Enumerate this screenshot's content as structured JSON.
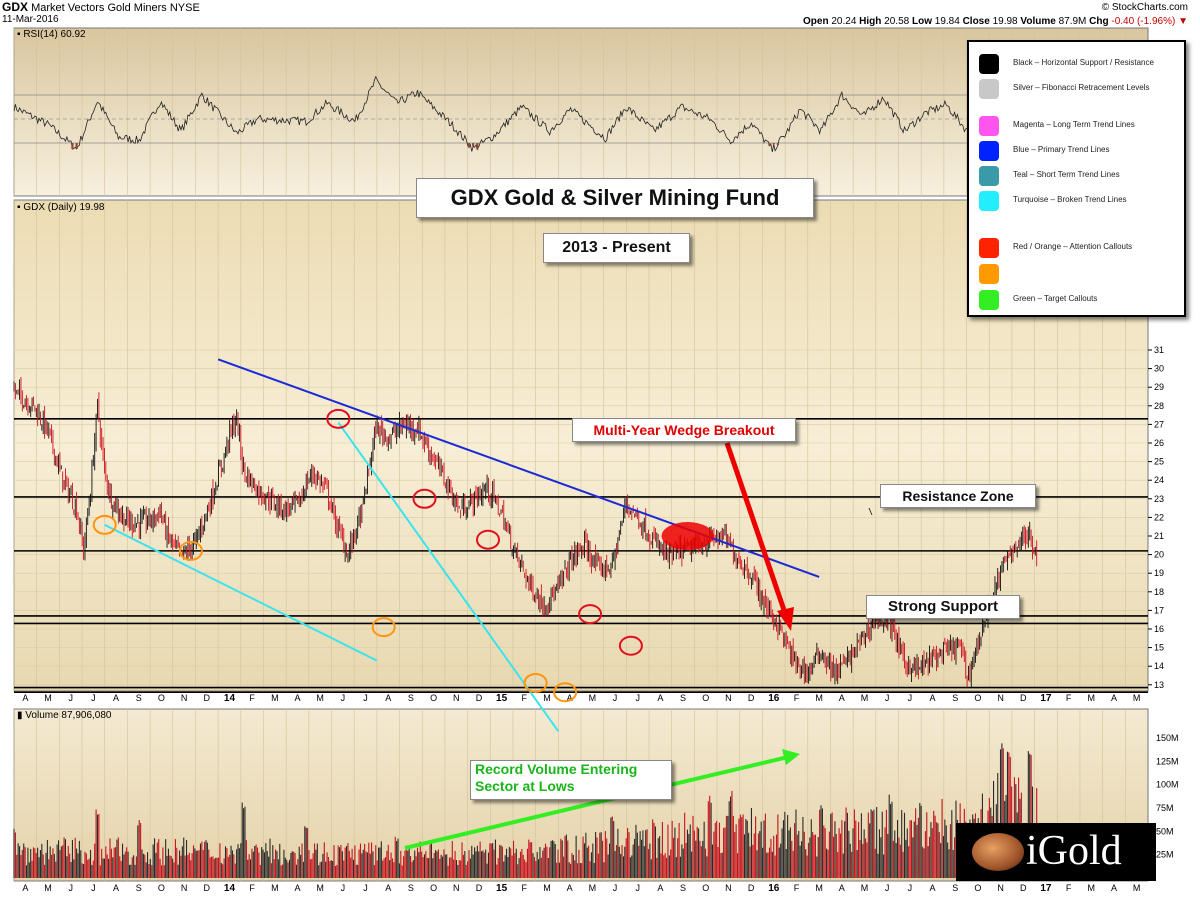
{
  "header": {
    "symbol": "GDX",
    "name": "Market Vectors Gold Miners",
    "exchange": "NYSE",
    "date": "11-Mar-2016",
    "source": "© StockCharts.com",
    "open_label": "Open",
    "open": "20.24",
    "high_label": "High",
    "high": "20.58",
    "low_label": "Low",
    "low": "19.84",
    "close_label": "Close",
    "close": "19.98",
    "volume_label": "Volume",
    "volume": "87.9M",
    "chg_label": "Chg",
    "chg": "-0.40 (-1.96%)"
  },
  "panels": {
    "rsi_label": "RSI(14) 60.92",
    "price_label": "GDX (Daily) 19.98",
    "volume_label": "Volume 87,906,080"
  },
  "annotations": {
    "title": "GDX Gold & Silver Mining Fund",
    "period": "2013 - Present",
    "wedge": "Multi-Year Wedge Breakout",
    "resistance": "Resistance Zone",
    "support": "Strong Support",
    "volume_line1": "Record Volume Entering",
    "volume_line2": "Sector at Lows"
  },
  "legend": [
    {
      "label": "Black – Horizontal Support / Resistance",
      "color": "#000000"
    },
    {
      "label": "Silver – Fibonacci Retracement Levels",
      "color": "#c8c8c8"
    },
    {
      "label": "Magenta – Long Term Trend Lines",
      "color": "#ff55ee"
    },
    {
      "label": "Blue – Primary Trend Lines",
      "color": "#0022ff"
    },
    {
      "label": "Teal – Short Term Trend Lines",
      "color": "#3a9aa8"
    },
    {
      "label": "Turquoise – Broken Trend Lines",
      "color": "#22eeff"
    },
    {
      "label": "Red / Orange – Attention Callouts",
      "color": "#ff2200"
    },
    {
      "label": "",
      "color": "#ff9900"
    },
    {
      "label": "Green – Target Callouts",
      "color": "#33ee22"
    }
  ],
  "logo": "iGold",
  "chart_data": {
    "type": "candlestick",
    "months": [
      "A",
      "M",
      "J",
      "J",
      "A",
      "S",
      "O",
      "N",
      "D",
      "14",
      "F",
      "M",
      "A",
      "M",
      "J",
      "J",
      "A",
      "S",
      "O",
      "N",
      "D",
      "15",
      "F",
      "M",
      "A",
      "M",
      "J",
      "J",
      "A",
      "S",
      "O",
      "N",
      "D",
      "16",
      "F",
      "M",
      "A",
      "M",
      "J",
      "J",
      "A",
      "S",
      "O",
      "N",
      "D",
      "17",
      "F",
      "M",
      "A",
      "M"
    ],
    "price_ticks": [
      13,
      14,
      15,
      16,
      17,
      18,
      19,
      20,
      21,
      22,
      23,
      24,
      25,
      26,
      27,
      28,
      29,
      30,
      31
    ],
    "volume_ticks": [
      "25M",
      "50M",
      "75M",
      "100M",
      "125M",
      "150M"
    ],
    "price_anchors": [
      [
        0,
        28.8
      ],
      [
        3,
        27.9
      ],
      [
        5,
        26.5
      ],
      [
        7,
        24.0
      ],
      [
        9,
        22.5
      ],
      [
        10,
        20.2
      ],
      [
        11,
        23.5
      ],
      [
        12,
        28.0
      ],
      [
        13,
        24.5
      ],
      [
        14,
        23.0
      ],
      [
        16,
        21.8
      ],
      [
        18,
        21.7
      ],
      [
        20,
        21.9
      ],
      [
        21,
        22.4
      ],
      [
        22,
        21.0
      ],
      [
        24,
        19.9
      ],
      [
        26,
        20.6
      ],
      [
        28,
        22.6
      ],
      [
        30,
        25.0
      ],
      [
        31,
        26.5
      ],
      [
        32,
        27.3
      ],
      [
        33,
        24.5
      ],
      [
        35,
        23.5
      ],
      [
        37,
        22.9
      ],
      [
        39,
        22.4
      ],
      [
        41,
        22.8
      ],
      [
        42,
        23.8
      ],
      [
        43,
        24.4
      ],
      [
        45,
        23.4
      ],
      [
        46,
        22.0
      ],
      [
        48,
        20.0
      ],
      [
        50,
        22.3
      ],
      [
        52,
        26.8
      ],
      [
        54,
        26.3
      ],
      [
        56,
        27.0
      ],
      [
        58,
        26.8
      ],
      [
        60,
        25.4
      ],
      [
        62,
        24.0
      ],
      [
        64,
        22.4
      ],
      [
        66,
        22.9
      ],
      [
        68,
        23.6
      ],
      [
        70,
        22.3
      ],
      [
        72,
        20.1
      ],
      [
        74,
        18.5
      ],
      [
        76,
        17.3
      ],
      [
        78,
        18.0
      ],
      [
        80,
        19.7
      ],
      [
        82,
        20.5
      ],
      [
        84,
        19.2
      ],
      [
        86,
        19.4
      ],
      [
        88,
        22.8
      ],
      [
        90,
        21.8
      ],
      [
        92,
        20.7
      ],
      [
        94,
        19.9
      ],
      [
        96,
        20.2
      ],
      [
        98,
        20.4
      ],
      [
        100,
        20.8
      ],
      [
        102,
        21.0
      ],
      [
        104,
        19.8
      ],
      [
        106,
        18.9
      ],
      [
        108,
        17.3
      ],
      [
        110,
        16.1
      ],
      [
        112,
        14.3
      ],
      [
        114,
        13.6
      ],
      [
        116,
        14.8
      ],
      [
        118,
        13.6
      ],
      [
        120,
        14.4
      ],
      [
        122,
        15.5
      ],
      [
        124,
        16.7
      ],
      [
        126,
        16.3
      ],
      [
        128,
        14.2
      ],
      [
        130,
        13.8
      ],
      [
        132,
        14.4
      ],
      [
        134,
        14.8
      ],
      [
        136,
        15.1
      ],
      [
        137,
        13.4
      ],
      [
        138,
        14.6
      ],
      [
        140,
        17.0
      ],
      [
        142,
        19.2
      ],
      [
        144,
        20.6
      ],
      [
        146,
        21.0
      ],
      [
        147,
        19.98
      ]
    ],
    "rsi_levels": [
      30,
      50,
      70
    ],
    "rsi_anchors": [
      [
        0,
        60
      ],
      [
        5,
        45
      ],
      [
        9,
        25
      ],
      [
        12,
        65
      ],
      [
        15,
        35
      ],
      [
        18,
        32
      ],
      [
        21,
        65
      ],
      [
        24,
        40
      ],
      [
        27,
        70
      ],
      [
        32,
        38
      ],
      [
        35,
        50
      ],
      [
        42,
        48
      ],
      [
        45,
        63
      ],
      [
        49,
        48
      ],
      [
        52,
        82
      ],
      [
        55,
        63
      ],
      [
        58,
        72
      ],
      [
        63,
        45
      ],
      [
        66,
        25
      ],
      [
        69,
        36
      ],
      [
        73,
        60
      ],
      [
        77,
        40
      ],
      [
        80,
        58
      ],
      [
        85,
        34
      ],
      [
        88,
        60
      ],
      [
        92,
        40
      ],
      [
        96,
        60
      ],
      [
        100,
        50
      ],
      [
        103,
        32
      ],
      [
        106,
        47
      ],
      [
        109,
        24
      ],
      [
        111,
        38
      ],
      [
        113,
        58
      ],
      [
        116,
        40
      ],
      [
        119,
        70
      ],
      [
        122,
        52
      ],
      [
        125,
        68
      ],
      [
        128,
        40
      ],
      [
        131,
        55
      ],
      [
        134,
        62
      ],
      [
        137,
        40
      ],
      [
        140,
        82
      ],
      [
        144,
        78
      ],
      [
        147,
        72
      ]
    ],
    "volume_anchors": [
      [
        0,
        30
      ],
      [
        30,
        30
      ],
      [
        45,
        28
      ],
      [
        60,
        27
      ],
      [
        75,
        30
      ],
      [
        85,
        35
      ],
      [
        95,
        48
      ],
      [
        105,
        55
      ],
      [
        115,
        50
      ],
      [
        125,
        55
      ],
      [
        135,
        60
      ],
      [
        142,
        85
      ],
      [
        147,
        70
      ]
    ],
    "volume_spikes": [
      [
        0,
        55
      ],
      [
        12,
        75
      ],
      [
        18,
        65
      ],
      [
        33,
        85
      ],
      [
        42,
        62
      ],
      [
        55,
        45
      ],
      [
        70,
        38
      ],
      [
        86,
        70
      ],
      [
        100,
        92
      ],
      [
        103,
        95
      ],
      [
        116,
        80
      ],
      [
        126,
        90
      ],
      [
        138,
        72
      ],
      [
        142,
        160
      ],
      [
        143,
        140
      ],
      [
        146,
        140
      ]
    ],
    "horizontal_levels": [
      12.6,
      12.85,
      16.3,
      16.7,
      20.2,
      23.1,
      27.3
    ],
    "trendlines": [
      {
        "color": "#1a2ad6",
        "from": [
          8.5,
          30.5
        ],
        "to": [
          35.0,
          18.8
        ]
      },
      {
        "color": "#38e4ee",
        "from": [
          3.5,
          21.6
        ],
        "to": [
          15.5,
          14.3
        ]
      },
      {
        "color": "#38e4ee",
        "from": [
          13.8,
          27.1
        ],
        "to": [
          23.5,
          10.5
        ]
      }
    ],
    "attention_circles": [
      {
        "color": "red",
        "at": [
          13.8,
          27.3
        ]
      },
      {
        "color": "red",
        "at": [
          17.6,
          23.0
        ]
      },
      {
        "color": "red",
        "at": [
          20.4,
          20.8
        ]
      },
      {
        "color": "red",
        "at": [
          24.9,
          16.8
        ]
      },
      {
        "color": "red",
        "at": [
          26.7,
          15.1
        ]
      },
      {
        "color": "orange",
        "at": [
          3.5,
          21.6
        ]
      },
      {
        "color": "orange",
        "at": [
          7.3,
          20.2
        ]
      },
      {
        "color": "orange",
        "at": [
          15.8,
          16.1
        ]
      },
      {
        "color": "orange",
        "at": [
          22.5,
          13.1
        ]
      },
      {
        "color": "orange",
        "at": [
          23.8,
          12.6
        ]
      }
    ],
    "target_zone": {
      "color": "#ee0000",
      "at": [
        29.2,
        21.0
      ]
    }
  }
}
